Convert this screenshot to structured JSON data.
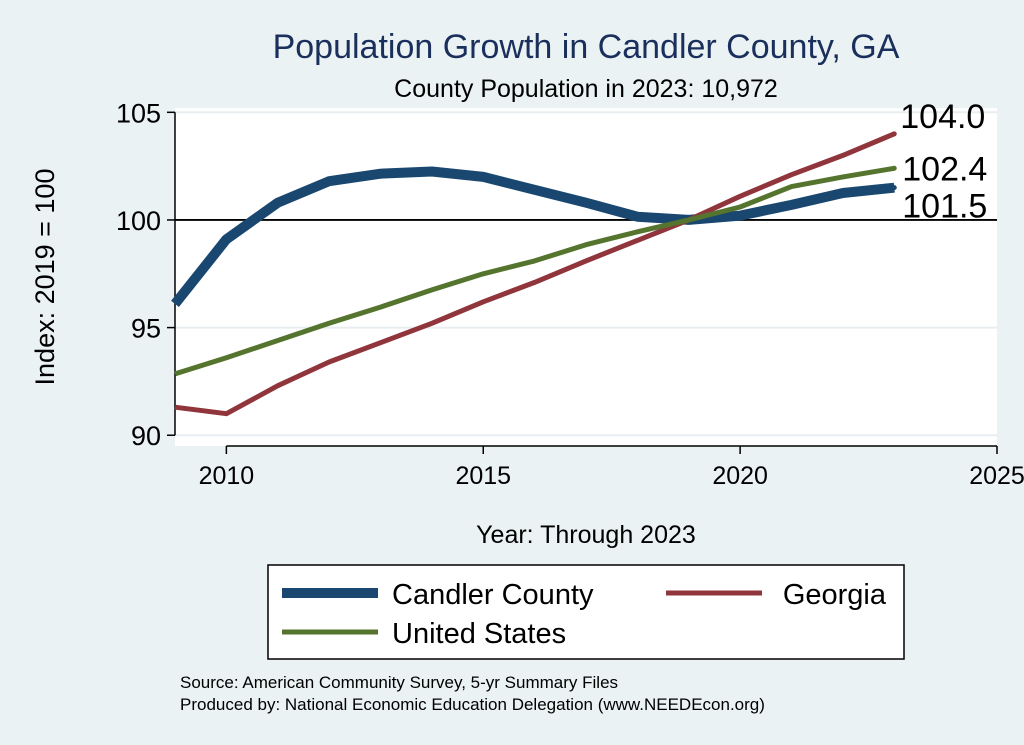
{
  "chart_data": {
    "type": "line",
    "title": "Population Growth in Candler County, GA",
    "subtitle": "County Population in 2023: 10,972",
    "xlabel": "Year: Through 2023",
    "ylabel": "Index: 2019 = 100",
    "xlim": [
      2009,
      2025
    ],
    "ylim": [
      89.5,
      105.2
    ],
    "xticks": [
      2010,
      2015,
      2020,
      2025
    ],
    "yticks": [
      90,
      95,
      100,
      105
    ],
    "reference_line": 100,
    "grid": true,
    "legend_position": "bottom",
    "x": [
      2009,
      2010,
      2011,
      2012,
      2013,
      2014,
      2015,
      2016,
      2017,
      2018,
      2019,
      2020,
      2021,
      2022,
      2023
    ],
    "series": [
      {
        "name": "Candler  County",
        "color": "#1a476f",
        "values": [
          96.1,
          99.1,
          100.8,
          101.8,
          102.15,
          102.25,
          102.0,
          101.4,
          100.8,
          100.15,
          100.0,
          100.2,
          100.7,
          101.25,
          101.5
        ],
        "end_label": "101.5"
      },
      {
        "name": "Georgia",
        "color": "#90353b",
        "values": [
          91.3,
          91.0,
          92.3,
          93.4,
          94.3,
          95.2,
          96.2,
          97.1,
          98.1,
          99.05,
          100.0,
          101.1,
          102.1,
          103.0,
          104.0
        ],
        "end_label": "104.0"
      },
      {
        "name": "United States",
        "color": "#55752f",
        "values": [
          92.85,
          93.6,
          94.4,
          95.2,
          95.95,
          96.75,
          97.5,
          98.1,
          98.85,
          99.45,
          100.0,
          100.6,
          101.55,
          102.0,
          102.4
        ],
        "end_label": "102.4"
      }
    ]
  },
  "footer": {
    "source": "Source: American Community Survey, 5-yr Summary Files",
    "produced_by": "Produced by: National Economic Education Delegation (www.NEEDEcon.org)"
  }
}
